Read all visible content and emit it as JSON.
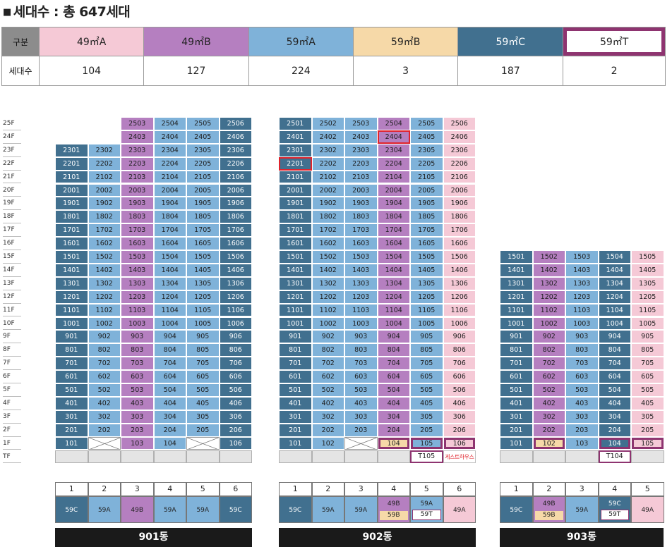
{
  "title": "세대수 : 총 647세대",
  "summary": {
    "row1_header": "구분",
    "row2_header": "세대수",
    "types": [
      {
        "label": "49㎡A",
        "count": "104",
        "color": "#f5c9d6"
      },
      {
        "label": "49㎡B",
        "count": "127",
        "color": "#b57fc0"
      },
      {
        "label": "59㎡A",
        "count": "224",
        "color": "#7fb2d9"
      },
      {
        "label": "59㎡B",
        "count": "3",
        "color": "#f6d9a8"
      },
      {
        "label": "59㎡C",
        "count": "187",
        "color": "#41708f"
      },
      {
        "label": "59㎡T",
        "count": "2",
        "color": "#ffffff"
      }
    ]
  },
  "floors": [
    "25F",
    "24F",
    "23F",
    "22F",
    "21F",
    "20F",
    "19F",
    "18F",
    "17F",
    "16F",
    "15F",
    "14F",
    "13F",
    "12F",
    "11F",
    "10F",
    "9F",
    "8F",
    "7F",
    "6F",
    "5F",
    "4F",
    "3F",
    "2F",
    "1F",
    "TF"
  ],
  "colors": {
    "49A": "#f5c9d6",
    "49B": "#b57fc0",
    "59A": "#7fb2d9",
    "59B": "#f6d9a8",
    "59C": "#41708f",
    "59T": "#8e3470",
    "highlight_red": "#e0232c"
  },
  "buildings": [
    {
      "name": "901동",
      "line_types": [
        "59C",
        "59A",
        "49B",
        "59A",
        "59A",
        "59C"
      ],
      "top_floor_by_line": [
        23,
        23,
        25,
        25,
        25,
        25
      ],
      "first_floor": [
        "101",
        "",
        "103",
        "104",
        "",
        "106"
      ],
      "first_floor_empty": [
        false,
        true,
        false,
        false,
        true,
        false
      ],
      "tf": [
        "",
        "",
        "",
        "",
        "",
        ""
      ],
      "legend": {
        "numbers": [
          "1",
          "2",
          "3",
          "4",
          "5",
          "6"
        ],
        "types": [
          "59C",
          "59A",
          "49B",
          "59A",
          "59A",
          "59C"
        ]
      }
    },
    {
      "name": "902동",
      "line_types": [
        "59C",
        "59A",
        "59A",
        "49B",
        "59A",
        "49A"
      ],
      "top_floor_by_line": [
        25,
        25,
        25,
        25,
        25,
        25
      ],
      "first_floor": [
        "101",
        "102",
        "",
        "104",
        "105",
        "106"
      ],
      "first_floor_empty": [
        false,
        false,
        true,
        false,
        false,
        false
      ],
      "tf": [
        "",
        "",
        "",
        "",
        "T105",
        "게스트하우스"
      ],
      "legend": {
        "numbers": [
          "1",
          "2",
          "3",
          "4",
          "5",
          "6"
        ],
        "types": [
          "59C",
          "59A",
          "59A",
          "49B",
          "59A",
          "49A"
        ],
        "subs": [
          "",
          "",
          "",
          "59B",
          "59T",
          ""
        ]
      }
    },
    {
      "name": "903동",
      "line_types": [
        "59C",
        "49B",
        "59A",
        "59C",
        "49A"
      ],
      "top_floor_by_line": [
        15,
        15,
        15,
        15,
        15
      ],
      "first_floor": [
        "101",
        "102",
        "103",
        "104",
        "105"
      ],
      "first_floor_empty": [
        false,
        false,
        false,
        false,
        false
      ],
      "tf": [
        "",
        "",
        "",
        "T104",
        ""
      ],
      "legend": {
        "numbers": [
          "1",
          "2",
          "3",
          "4",
          "5"
        ],
        "types": [
          "59C",
          "49B",
          "59A",
          "59C",
          "49A"
        ],
        "subs": [
          "",
          "59B",
          "",
          "59T",
          ""
        ]
      }
    }
  ]
}
